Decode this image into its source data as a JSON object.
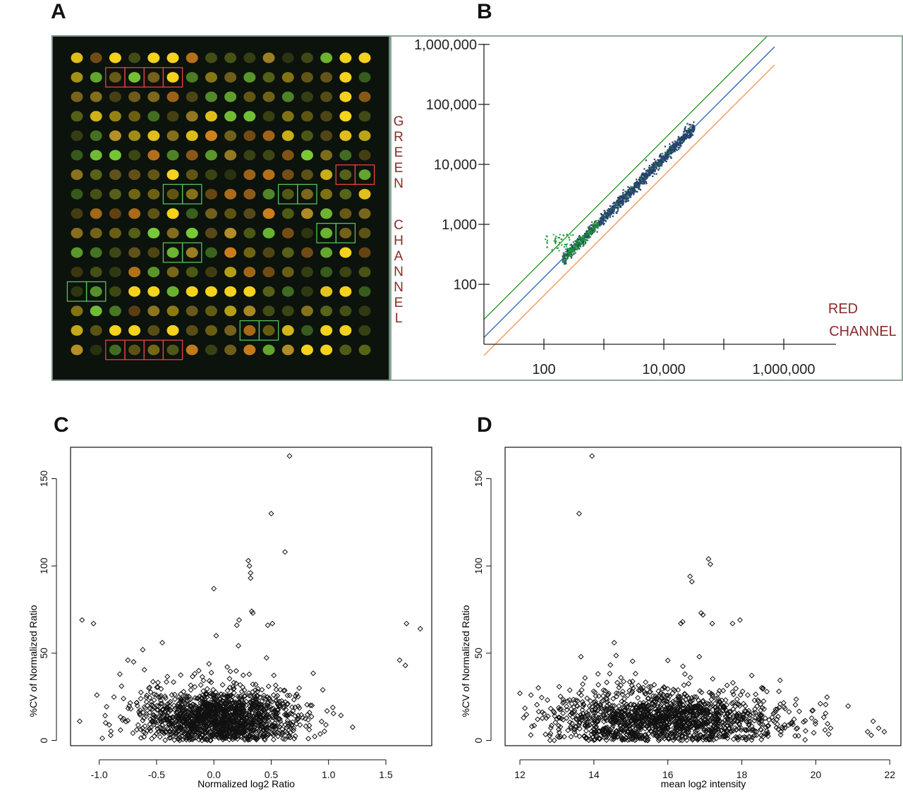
{
  "panels": {
    "a": {
      "letter": "A"
    },
    "b": {
      "letter": "B"
    },
    "c": {
      "letter": "C"
    },
    "d": {
      "letter": "D"
    }
  },
  "colors": {
    "spot_yellow": "#f5d21c",
    "spot_orange": "#e08a1e",
    "spot_green": "#7fd43a",
    "spot_pink": "#f3a18a",
    "box_red": "#e0453b",
    "box_green": "#55c05a",
    "line_green": "#2e9e2e",
    "line_blue": "#2b60c8",
    "line_orange": "#f19a5a",
    "axis_label_red": "#8a2a2a"
  },
  "chart_data": [
    {
      "panel": "B",
      "type": "scatter",
      "scale": "log-log",
      "ylabel": "GREEN CHANNEL",
      "xlabel": "RED CHANNEL",
      "y_ticks": [
        "1,000,000",
        "100,000",
        "10,000",
        "1,000",
        "100"
      ],
      "x_ticks": [
        "100",
        "10,000",
        "1,000,000"
      ],
      "xlim": [
        10,
        1000000
      ],
      "ylim": [
        10,
        1000000
      ],
      "lines": [
        {
          "color": "green",
          "relation": "y = 2x"
        },
        {
          "color": "blue",
          "relation": "y = x"
        },
        {
          "color": "orange",
          "relation": "y = x/2"
        }
      ],
      "cloud": {
        "x_range": [
          180,
          30000
        ],
        "y_range": [
          250,
          30000
        ]
      }
    },
    {
      "panel": "C",
      "type": "scatter",
      "xlabel": "Normalized log2 Ratio",
      "ylabel": "%CV of Normalized Ratio",
      "x_ticks": [
        "-1.0",
        "-0.5",
        "0.0",
        "0.5",
        "1.0",
        "1.5"
      ],
      "y_ticks": [
        "0",
        "50",
        "100",
        "150"
      ],
      "xlim": [
        -1.25,
        1.9
      ],
      "ylim": [
        -3,
        168
      ],
      "outliers": [
        [
          0.66,
          163
        ],
        [
          0.5,
          130
        ],
        [
          0.62,
          108
        ],
        [
          0.3,
          103
        ],
        [
          0.31,
          100
        ],
        [
          0.32,
          96
        ],
        [
          0.32,
          93
        ],
        [
          0.0,
          87
        ],
        [
          0.33,
          74
        ],
        [
          0.34,
          73
        ],
        [
          -1.15,
          69
        ],
        [
          -1.05,
          67
        ],
        [
          0.22,
          69
        ],
        [
          0.2,
          66
        ],
        [
          0.47,
          66
        ],
        [
          0.51,
          67
        ],
        [
          1.68,
          67
        ],
        [
          1.8,
          64
        ],
        [
          0.02,
          60
        ],
        [
          -0.45,
          56
        ],
        [
          1.62,
          46
        ],
        [
          1.67,
          43
        ],
        [
          0.95,
          29
        ],
        [
          -1.17,
          11
        ],
        [
          -0.62,
          52
        ],
        [
          -0.75,
          46
        ],
        [
          -0.7,
          45
        ],
        [
          -0.82,
          38
        ],
        [
          -1.02,
          26
        ]
      ],
      "cloud": {
        "x_center": 0.05,
        "x_spread": 0.35,
        "y_center": 12,
        "y_spread": 14
      }
    },
    {
      "panel": "D",
      "type": "scatter",
      "xlabel": "mean log2 intensity",
      "ylabel": "%CV of Normalized Ratio",
      "x_ticks": [
        "12",
        "14",
        "16",
        "18",
        "20",
        "22"
      ],
      "y_ticks": [
        "0",
        "50",
        "100",
        "150"
      ],
      "xlim": [
        11.6,
        22.3
      ],
      "ylim": [
        -3,
        168
      ],
      "outliers": [
        [
          13.95,
          163
        ],
        [
          13.6,
          130
        ],
        [
          17.1,
          104
        ],
        [
          17.15,
          101
        ],
        [
          16.6,
          94
        ],
        [
          16.65,
          91
        ],
        [
          16.9,
          73
        ],
        [
          16.95,
          72
        ],
        [
          16.35,
          67
        ],
        [
          16.4,
          68
        ],
        [
          17.2,
          67
        ],
        [
          17.75,
          67
        ],
        [
          17.95,
          69
        ],
        [
          14.55,
          56
        ],
        [
          13.65,
          48
        ],
        [
          16.85,
          48
        ],
        [
          21.7,
          7
        ],
        [
          21.85,
          5
        ],
        [
          21.4,
          5
        ],
        [
          21.5,
          3
        ],
        [
          21.55,
          11
        ],
        [
          12.0,
          27
        ],
        [
          12.1,
          13
        ],
        [
          12.3,
          26
        ],
        [
          20.25,
          6
        ],
        [
          20.4,
          7
        ],
        [
          19.9,
          17
        ]
      ],
      "cloud": {
        "x_center": 15.9,
        "x_spread": 1.6,
        "y_center": 12,
        "y_spread": 14
      }
    }
  ]
}
